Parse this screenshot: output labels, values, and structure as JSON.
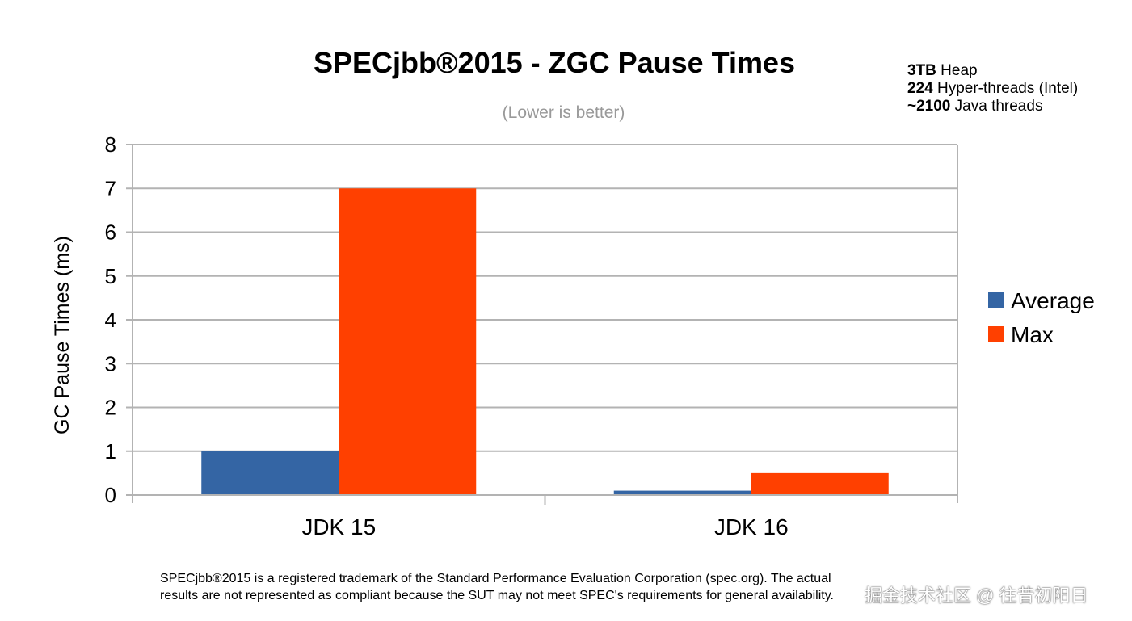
{
  "chart_data": {
    "type": "bar",
    "title": "SPECjbb®2015 - ZGC Pause Times",
    "subtitle": "(Lower is better)",
    "xlabel": "",
    "ylabel": "GC Pause Times (ms)",
    "ylim": [
      0,
      8
    ],
    "yticks": [
      "0",
      "1",
      "2",
      "3",
      "4",
      "5",
      "6",
      "7",
      "8"
    ],
    "categories": [
      "JDK 15",
      "JDK 16"
    ],
    "series": [
      {
        "name": "Average",
        "color": "#3465a4",
        "values": [
          1.0,
          0.1
        ]
      },
      {
        "name": "Max",
        "color": "#ff4000",
        "values": [
          7.0,
          0.5
        ]
      }
    ],
    "grid": true,
    "legend_position": "right"
  },
  "notes": [
    {
      "bold": "3TB",
      "text": " Heap"
    },
    {
      "bold": "224",
      "text": " Hyper-threads (Intel)"
    },
    {
      "bold": "~2100",
      "text": " Java threads"
    }
  ],
  "footnote": {
    "line1": "SPECjbb®2015 is a registered trademark of the Standard Performance Evaluation Corporation (spec.org). The actual",
    "line2": "results are not represented as compliant because the SUT may not meet SPEC's requirements for general availability."
  },
  "watermark": "掘金技术社区 @ 往昔初阳日"
}
